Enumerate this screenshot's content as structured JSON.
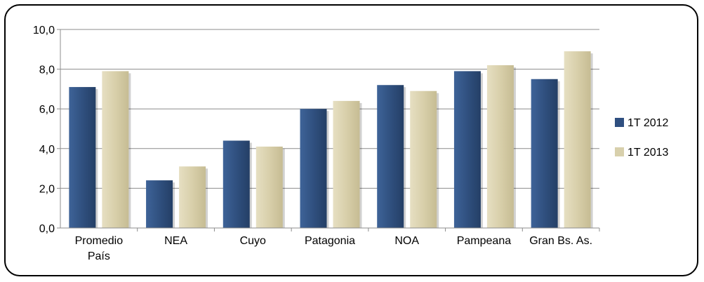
{
  "chart_data": {
    "type": "bar",
    "categories": [
      [
        "Promedio",
        "País"
      ],
      [
        "NEA"
      ],
      [
        "Cuyo"
      ],
      [
        "Patagonia"
      ],
      [
        "NOA"
      ],
      [
        "Pampeana"
      ],
      [
        "Gran Bs. As."
      ]
    ],
    "series": [
      {
        "name": "1T 2012",
        "values": [
          7.1,
          2.4,
          4.4,
          6.0,
          7.2,
          7.9,
          7.5
        ],
        "color": "#2f4f80"
      },
      {
        "name": "1T 2013",
        "values": [
          7.9,
          3.1,
          4.1,
          6.4,
          6.9,
          8.2,
          8.9
        ],
        "color": "#d8d0ac"
      }
    ],
    "ylim": [
      0,
      10
    ],
    "yticks": [
      "0,0",
      "2,0",
      "4,0",
      "6,0",
      "8,0",
      "10,0"
    ],
    "grid": true,
    "legend_position": "right"
  }
}
